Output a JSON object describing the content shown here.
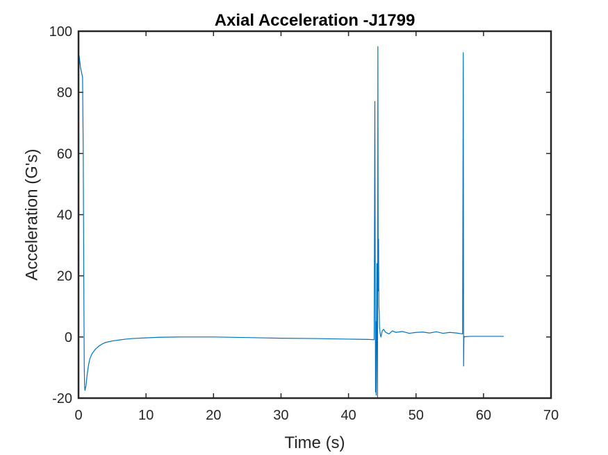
{
  "chart_data": {
    "type": "line",
    "title": "Axial Acceleration -J1799",
    "xlabel": "Time (s)",
    "ylabel": "Acceleration (G's)",
    "xlim": [
      0,
      70
    ],
    "ylim": [
      -20,
      100
    ],
    "xticks": [
      0,
      10,
      20,
      30,
      40,
      50,
      60,
      70
    ],
    "yticks": [
      -20,
      0,
      20,
      40,
      60,
      80,
      100
    ],
    "xtick_labels": [
      "0",
      "10",
      "20",
      "30",
      "40",
      "50",
      "60",
      "70"
    ],
    "ytick_labels": [
      "-20",
      "0",
      "20",
      "40",
      "60",
      "80",
      "100"
    ],
    "grid": false,
    "legend": "none",
    "line_color": "#0072BD",
    "axis_color": "#262626",
    "series": [
      {
        "x": [
          0.0,
          0.1,
          0.2,
          0.3,
          0.4,
          0.5,
          0.6,
          0.7,
          0.8,
          0.85,
          0.9,
          0.95,
          1.0,
          1.1,
          1.2,
          1.3,
          1.5,
          1.7,
          2.0,
          2.5,
          3.0,
          3.5,
          4.0,
          5.0,
          6.0,
          7.0,
          8.0,
          10.0,
          12.0,
          15.0,
          18.0,
          20.0,
          25.0,
          30.0,
          35.0,
          40.0,
          43.0,
          43.8,
          43.9,
          44.0,
          44.05,
          44.1,
          44.2,
          44.3,
          44.35,
          44.4,
          44.45,
          44.5,
          44.55,
          44.6,
          44.7,
          44.8,
          45.0,
          45.2,
          45.5,
          46.0,
          46.5,
          47.0,
          48.0,
          49.0,
          50.0,
          51.0,
          52.0,
          53.0,
          54.0,
          55.0,
          56.0,
          56.9,
          57.0,
          57.05,
          57.1,
          57.15,
          57.2,
          57.3,
          58.0,
          60.0,
          62.0,
          63.0
        ],
        "y": [
          82,
          92,
          90,
          88,
          87,
          86,
          85,
          60,
          10,
          -10,
          -16,
          -17.5,
          -17,
          -16,
          -14,
          -12,
          -9,
          -7,
          -5.5,
          -4,
          -3,
          -2.3,
          -1.8,
          -1.3,
          -1.0,
          -0.7,
          -0.5,
          -0.3,
          -0.1,
          0.0,
          0.0,
          0.0,
          -0.2,
          -0.4,
          -0.5,
          -0.7,
          -0.8,
          -0.9,
          77,
          -18,
          5,
          -19,
          24,
          -20,
          95,
          15,
          32,
          10,
          8,
          3,
          1,
          0,
          2,
          2.5,
          1.5,
          1,
          2,
          1.5,
          1.8,
          1.2,
          1.5,
          1.6,
          1.3,
          1.7,
          1.2,
          1.5,
          1.3,
          1.0,
          93,
          -9.5,
          0,
          0.2,
          0,
          0.1,
          0.2,
          0.2,
          0.2,
          0.2
        ]
      }
    ]
  }
}
